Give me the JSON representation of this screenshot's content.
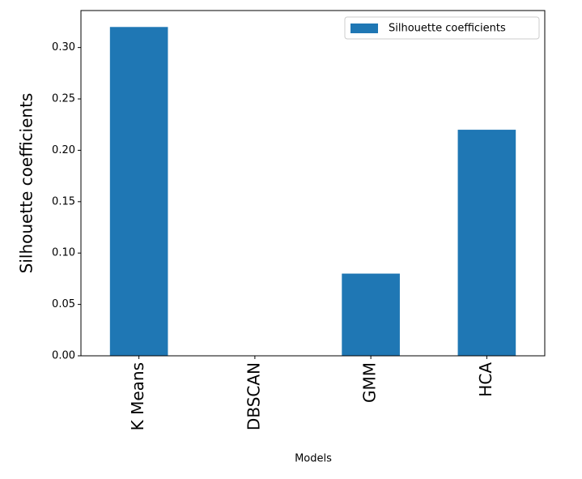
{
  "chart_data": {
    "type": "bar",
    "x_label": "Models",
    "y_label": "Silhouette coefficients",
    "categories": [
      "K Means",
      "DBSCAN",
      "GMM",
      "HCA"
    ],
    "series": [
      {
        "name": "Silhouette coefficients",
        "color": "#1f77b4",
        "values": [
          0.32,
          0,
          0.08,
          0.22
        ]
      }
    ],
    "ylim": [
      0,
      0.336
    ],
    "yticks": [
      {
        "value": 0,
        "label": "0.00"
      },
      {
        "value": 0.05,
        "label": "0.05"
      },
      {
        "value": 0.1,
        "label": "0.10"
      },
      {
        "value": 0.15,
        "label": "0.15"
      },
      {
        "value": 0.2,
        "label": "0.20"
      },
      {
        "value": 0.25,
        "label": "0.25"
      },
      {
        "value": 0.3,
        "label": "0.30"
      }
    ],
    "grid": false,
    "legend": "upper right"
  }
}
